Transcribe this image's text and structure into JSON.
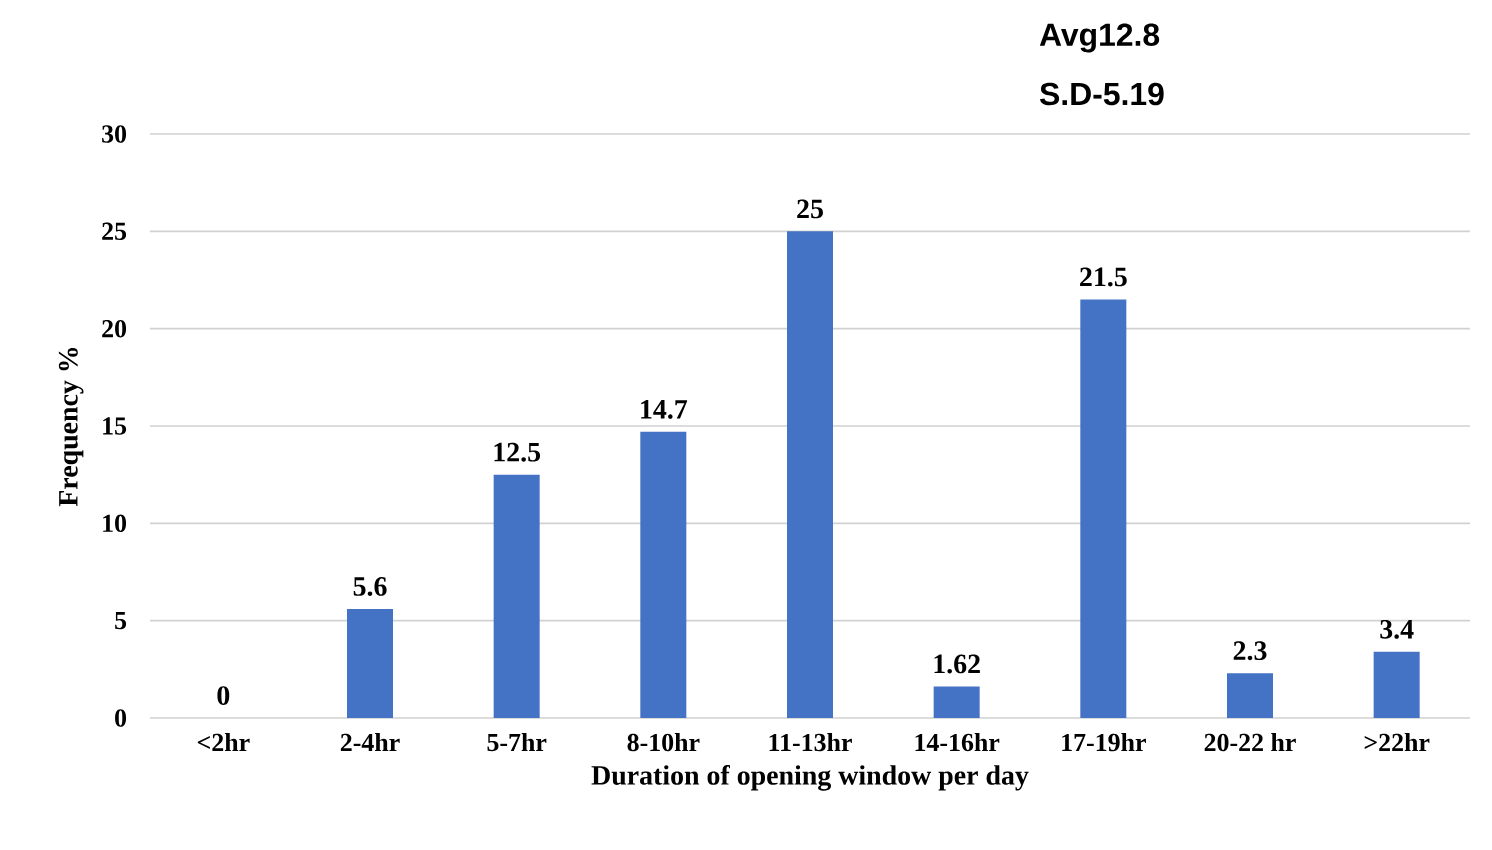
{
  "chart_data": {
    "type": "bar",
    "xlabel": "Duration of opening  window per day",
    "ylabel": "Frequency %",
    "categories": [
      "<2hr",
      "2-4hr",
      "5-7hr",
      "8-10hr",
      "11-13hr",
      "14-16hr",
      "17-19hr",
      "20-22 hr",
      ">22hr"
    ],
    "values": [
      0,
      5.6,
      12.5,
      14.7,
      25,
      1.62,
      21.5,
      2.3,
      3.4
    ],
    "color": "#4472c4",
    "ylim": [
      0,
      30
    ],
    "yticks": [
      0,
      5,
      10,
      15,
      20,
      25,
      30
    ],
    "grid": "y",
    "data_labels": true,
    "annotations": [
      "Avg12.8",
      "S.D-5.19"
    ]
  }
}
